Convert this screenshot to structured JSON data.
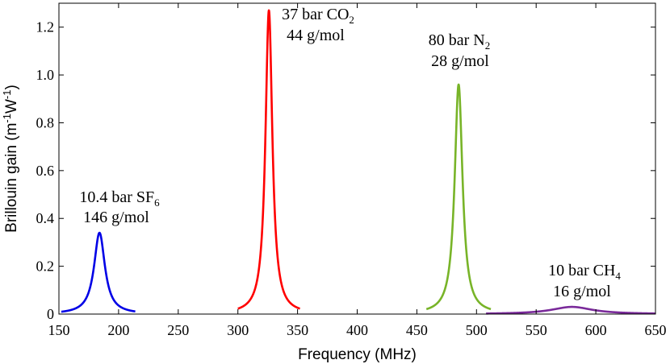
{
  "chart_data": {
    "type": "line",
    "title": "",
    "xlabel": "Frequency (MHz)",
    "ylabel": {
      "pre": "Brillouin gain (m",
      "sup1": "-1",
      "mid": "W",
      "sup2": "-1",
      "post": ")"
    },
    "xlim": [
      150,
      650
    ],
    "ylim": [
      0,
      1.3
    ],
    "x_ticks": [
      150,
      200,
      250,
      300,
      350,
      400,
      450,
      500,
      550,
      600,
      650
    ],
    "y_ticks": [
      0,
      0.2,
      0.4,
      0.6,
      0.8,
      1.0,
      1.2
    ],
    "y_tick_labels": [
      "0",
      "0.2",
      "0.4",
      "0.6",
      "0.8",
      "1.0",
      "1.2"
    ],
    "grid": false,
    "series": [
      {
        "center": 184,
        "peak": 0.34,
        "fwhm": 11,
        "range": [
          152,
          214
        ],
        "color": "#0000e6",
        "annotation": {
          "line1_pre": "10.4 bar SF",
          "line1_sub": "6",
          "line2": "146 g/mol"
        }
      },
      {
        "center": 326,
        "peak": 1.27,
        "fwhm": 7,
        "range": [
          300,
          352
        ],
        "color": "#ff0000",
        "annotation": {
          "line1_pre": "37 bar CO",
          "line1_sub": "2",
          "line2": "44 g/mol"
        }
      },
      {
        "center": 485,
        "peak": 0.96,
        "fwhm": 8,
        "range": [
          458,
          512
        ],
        "color": "#78b428",
        "annotation": {
          "line1_pre": "80 bar N",
          "line1_sub": "2",
          "line2": "28 g/mol"
        }
      },
      {
        "center": 580,
        "peak": 0.03,
        "fwhm": 42,
        "range": [
          508,
          650
        ],
        "color": "#7a2a9a",
        "annotation": {
          "line1_pre": "10 bar CH",
          "line1_sub": "4",
          "line2": "16 g/mol"
        }
      }
    ]
  }
}
